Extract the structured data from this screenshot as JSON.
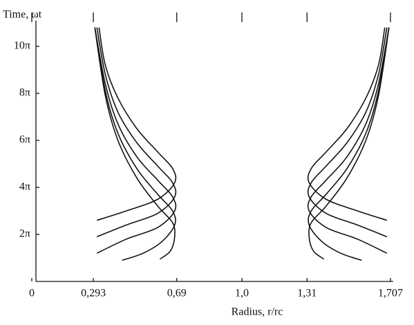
{
  "chart_data": {
    "type": "line",
    "y_label": "Time, ωt",
    "x_label": "Radius, r/rc",
    "xlim": [
      0,
      1.72
    ],
    "ylim": [
      0,
      11.1
    ],
    "xticks": [
      0,
      {
        "value": 0.293,
        "label": "0,293"
      },
      {
        "value": 0.69,
        "label": "0,69"
      },
      {
        "value": 1.0,
        "label": "1,0"
      },
      {
        "value": 1.31,
        "label": "1,31"
      },
      {
        "value": 1.707,
        "label": "1,707"
      }
    ],
    "yticks": [
      {
        "value": 2,
        "label": "2π"
      },
      {
        "value": 4,
        "label": "4π"
      },
      {
        "value": 6,
        "label": "6π"
      },
      {
        "value": 8,
        "label": "8π"
      },
      {
        "value": 10,
        "label": "10π"
      }
    ],
    "color": "#111111",
    "series": [
      {
        "x": [
          0.31,
          0.45,
          0.6,
          0.68,
          0.67,
          0.6,
          0.5,
          0.41,
          0.35,
          0.32
        ],
        "values": [
          2.6,
          3.0,
          3.5,
          4.2,
          4.8,
          5.5,
          6.5,
          7.8,
          9.2,
          10.8
        ]
      },
      {
        "x": [
          0.31,
          0.45,
          0.6,
          0.68,
          0.67,
          0.6,
          0.5,
          0.41,
          0.35,
          0.31
        ],
        "values": [
          1.9,
          2.4,
          2.9,
          3.6,
          4.2,
          4.9,
          5.9,
          7.2,
          8.8,
          10.8
        ]
      },
      {
        "x": [
          0.31,
          0.45,
          0.6,
          0.68,
          0.67,
          0.6,
          0.5,
          0.41,
          0.35,
          0.3
        ],
        "values": [
          1.2,
          1.8,
          2.3,
          3.0,
          3.6,
          4.3,
          5.3,
          6.7,
          8.4,
          10.8
        ]
      },
      {
        "x": [
          0.43,
          0.53,
          0.62,
          0.68,
          0.67,
          0.6,
          0.5,
          0.41,
          0.35,
          0.3
        ],
        "values": [
          0.9,
          1.2,
          1.7,
          2.4,
          3.0,
          3.7,
          4.8,
          6.3,
          8.1,
          10.8
        ]
      },
      {
        "x": [
          0.61,
          0.66,
          0.68,
          0.67,
          0.6,
          0.5,
          0.41,
          0.35,
          0.3
        ],
        "values": [
          0.95,
          1.3,
          1.9,
          2.5,
          3.2,
          4.4,
          6.0,
          7.9,
          10.8
        ]
      },
      {
        "x": [
          1.69,
          1.55,
          1.4,
          1.32,
          1.33,
          1.4,
          1.5,
          1.59,
          1.65,
          1.68
        ],
        "values": [
          2.6,
          3.0,
          3.5,
          4.2,
          4.8,
          5.5,
          6.5,
          7.8,
          9.2,
          10.8
        ]
      },
      {
        "x": [
          1.69,
          1.55,
          1.4,
          1.32,
          1.33,
          1.4,
          1.5,
          1.59,
          1.65,
          1.69
        ],
        "values": [
          1.9,
          2.4,
          2.9,
          3.6,
          4.2,
          4.9,
          5.9,
          7.2,
          8.8,
          10.8
        ]
      },
      {
        "x": [
          1.69,
          1.55,
          1.4,
          1.32,
          1.33,
          1.4,
          1.5,
          1.59,
          1.65,
          1.7
        ],
        "values": [
          1.2,
          1.8,
          2.3,
          3.0,
          3.6,
          4.3,
          5.3,
          6.7,
          8.4,
          10.8
        ]
      },
      {
        "x": [
          1.57,
          1.47,
          1.38,
          1.32,
          1.33,
          1.4,
          1.5,
          1.59,
          1.65,
          1.7
        ],
        "values": [
          0.9,
          1.2,
          1.7,
          2.4,
          3.0,
          3.7,
          4.8,
          6.3,
          8.1,
          10.8
        ]
      },
      {
        "x": [
          1.39,
          1.34,
          1.32,
          1.33,
          1.4,
          1.5,
          1.59,
          1.65,
          1.7
        ],
        "values": [
          0.95,
          1.3,
          1.9,
          2.5,
          3.2,
          4.4,
          6.0,
          7.9,
          10.8
        ]
      }
    ]
  }
}
